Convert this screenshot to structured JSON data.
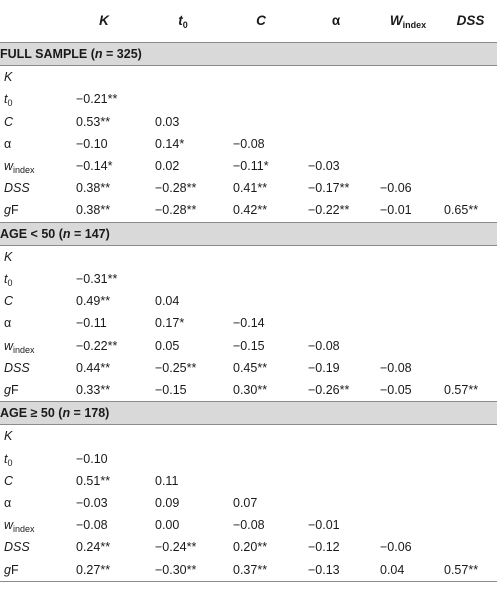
{
  "header": {
    "K": "K",
    "t": "t",
    "t_sub": "0",
    "C": "C",
    "alpha": "α",
    "W": "W",
    "W_sub": "index",
    "DSS": "DSS"
  },
  "sections": [
    {
      "title": "FULL SAMPLE (",
      "n": "n",
      "count": " = 325)",
      "rows": [
        {
          "label": "K",
          "values": [
            "",
            "",
            "",
            "",
            "",
            ""
          ]
        },
        {
          "label": "t0",
          "values": [
            "−0.21**",
            "",
            "",
            "",
            "",
            ""
          ]
        },
        {
          "label": "C",
          "values": [
            "0.53**",
            "0.03",
            "",
            "",
            "",
            ""
          ]
        },
        {
          "label": "α",
          "values": [
            "−0.10",
            "0.14*",
            "−0.08",
            "",
            "",
            ""
          ]
        },
        {
          "label": "windex",
          "values": [
            "−0.14*",
            "0.02",
            "−0.11*",
            "−0.03",
            "",
            ""
          ]
        },
        {
          "label": "DSS",
          "values": [
            "0.38**",
            "−0.28**",
            "0.41**",
            "−0.17**",
            "−0.06",
            ""
          ]
        },
        {
          "label": "gF",
          "values": [
            "0.38**",
            "−0.28**",
            "0.42**",
            "−0.22**",
            "−0.01",
            "0.65**"
          ]
        }
      ]
    },
    {
      "title": "AGE < 50 (",
      "n": "n",
      "count": " = 147)",
      "rows": [
        {
          "label": "K",
          "values": [
            "",
            "",
            "",
            "",
            "",
            ""
          ]
        },
        {
          "label": "t0",
          "values": [
            "−0.31**",
            "",
            "",
            "",
            "",
            ""
          ]
        },
        {
          "label": "C",
          "values": [
            "0.49**",
            "0.04",
            "",
            "",
            "",
            ""
          ]
        },
        {
          "label": "α",
          "values": [
            "−0.11",
            "0.17*",
            "−0.14",
            "",
            "",
            ""
          ]
        },
        {
          "label": "windex",
          "values": [
            "−0.22**",
            "0.05",
            "−0.15",
            "−0.08",
            "",
            ""
          ]
        },
        {
          "label": "DSS",
          "values": [
            "0.44**",
            "−0.25**",
            "0.45**",
            "−0.19",
            "−0.08",
            ""
          ]
        },
        {
          "label": "gF",
          "values": [
            "0.33**",
            "−0.15",
            "0.30**",
            "−0.26**",
            "−0.05",
            "0.57**"
          ]
        }
      ]
    },
    {
      "title": "AGE ≥ 50 (",
      "n": "n",
      "count": " = 178)",
      "rows": [
        {
          "label": "K",
          "values": [
            "",
            "",
            "",
            "",
            "",
            ""
          ]
        },
        {
          "label": "t0",
          "values": [
            "−0.10",
            "",
            "",
            "",
            "",
            ""
          ]
        },
        {
          "label": "C",
          "values": [
            "0.51**",
            "0.11",
            "",
            "",
            "",
            ""
          ]
        },
        {
          "label": "α",
          "values": [
            "−0.03",
            "0.09",
            "0.07",
            "",
            "",
            ""
          ]
        },
        {
          "label": "windex",
          "values": [
            "−0.08",
            "0.00",
            "−0.08",
            "−0.01",
            "",
            ""
          ]
        },
        {
          "label": "DSS",
          "values": [
            "0.24**",
            "−0.24**",
            "0.20**",
            "−0.12",
            "−0.06",
            ""
          ]
        },
        {
          "label": "gF",
          "values": [
            "0.27**",
            "−0.30**",
            "0.37**",
            "−0.13",
            "0.04",
            "0.57**"
          ]
        }
      ]
    }
  ]
}
